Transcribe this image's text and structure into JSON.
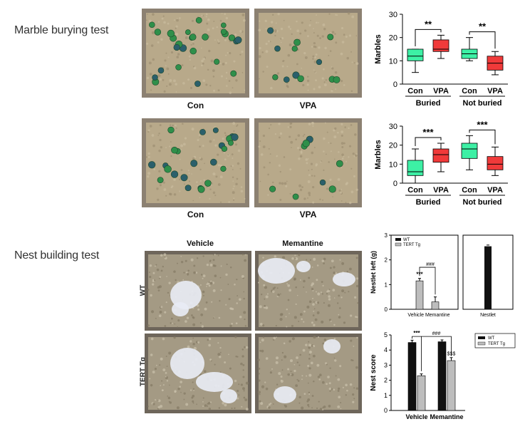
{
  "sections": {
    "marble_title": "Marble burying test",
    "nest_title": "Nest building test"
  },
  "marble_photos": {
    "row1": [
      "Con",
      "VPA"
    ],
    "row2": [
      "Con",
      "VPA"
    ]
  },
  "nest_photos": {
    "col_labels": [
      "Vehicle",
      "Memantine"
    ],
    "row_labels": [
      "WT",
      "TERT Tg"
    ]
  },
  "colors": {
    "con": "#3df0a5",
    "vpa": "#f03a3a",
    "wt": "#111111",
    "tg": "#bdbdbd",
    "bedding": "#b8a98a"
  },
  "chart_data": [
    {
      "type": "box",
      "ylabel": "Marbles",
      "ylim": [
        0,
        30
      ],
      "yticks": [
        0,
        10,
        20,
        30
      ],
      "groups": [
        "Buried",
        "Not buried"
      ],
      "categories": [
        "Con",
        "VPA",
        "Con",
        "VPA"
      ],
      "boxes": [
        {
          "min": 5,
          "q1": 10,
          "median": 12,
          "q3": 15,
          "max": 15
        },
        {
          "min": 11,
          "q1": 14,
          "median": 15,
          "q3": 19,
          "max": 21
        },
        {
          "min": 10,
          "q1": 11,
          "median": 13,
          "q3": 15,
          "max": 20
        },
        {
          "min": 4,
          "q1": 6,
          "median": 9,
          "q3": 12,
          "max": 14
        }
      ],
      "annotations": [
        "**",
        "**"
      ]
    },
    {
      "type": "box",
      "ylabel": "Marbles",
      "ylim": [
        0,
        30
      ],
      "yticks": [
        0,
        10,
        20,
        30
      ],
      "groups": [
        "Buried",
        "Not buried"
      ],
      "categories": [
        "Con",
        "VPA",
        "Con",
        "VPA"
      ],
      "boxes": [
        {
          "min": 0,
          "q1": 4,
          "median": 6,
          "q3": 12,
          "max": 18
        },
        {
          "min": 6,
          "q1": 11,
          "median": 15,
          "q3": 18,
          "max": 21
        },
        {
          "min": 7,
          "q1": 13,
          "median": 18,
          "q3": 21,
          "max": 25
        },
        {
          "min": 4,
          "q1": 7,
          "median": 10,
          "q3": 14,
          "max": 19
        }
      ],
      "annotations": [
        "***",
        "***"
      ]
    },
    {
      "type": "bar",
      "ylabel": "Nestlet left (g)",
      "ylim": [
        0,
        3
      ],
      "yticks": [
        0,
        1,
        2,
        3
      ],
      "categories": [
        "Vehicle",
        "Memantine"
      ],
      "x_caption": "Vehicle Memantine",
      "legend": [
        "WT",
        "TERT Tg"
      ],
      "series": [
        {
          "name": "TERT Tg",
          "values": [
            1.15,
            0.3
          ],
          "errors": [
            0.1,
            0.2
          ]
        }
      ],
      "annotations": [
        "***",
        "###"
      ]
    },
    {
      "type": "bar",
      "categories": [
        "Nestlet"
      ],
      "ylim": [
        0,
        3
      ],
      "values": [
        2.55
      ],
      "errors": [
        0.05
      ]
    },
    {
      "type": "bar",
      "ylabel": "Nest score",
      "ylim": [
        0,
        5
      ],
      "yticks": [
        0,
        1,
        2,
        3,
        4,
        5
      ],
      "categories": [
        "Vehicle",
        "Memantine"
      ],
      "legend": [
        "WT",
        "TERT Tg"
      ],
      "series": [
        {
          "name": "WT",
          "values": [
            4.5,
            4.55
          ],
          "errors": [
            0.15,
            0.12
          ]
        },
        {
          "name": "TERT Tg",
          "values": [
            2.3,
            3.3
          ],
          "errors": [
            0.12,
            0.2
          ]
        }
      ],
      "annotations": [
        "***",
        "###",
        "$$$"
      ]
    }
  ]
}
